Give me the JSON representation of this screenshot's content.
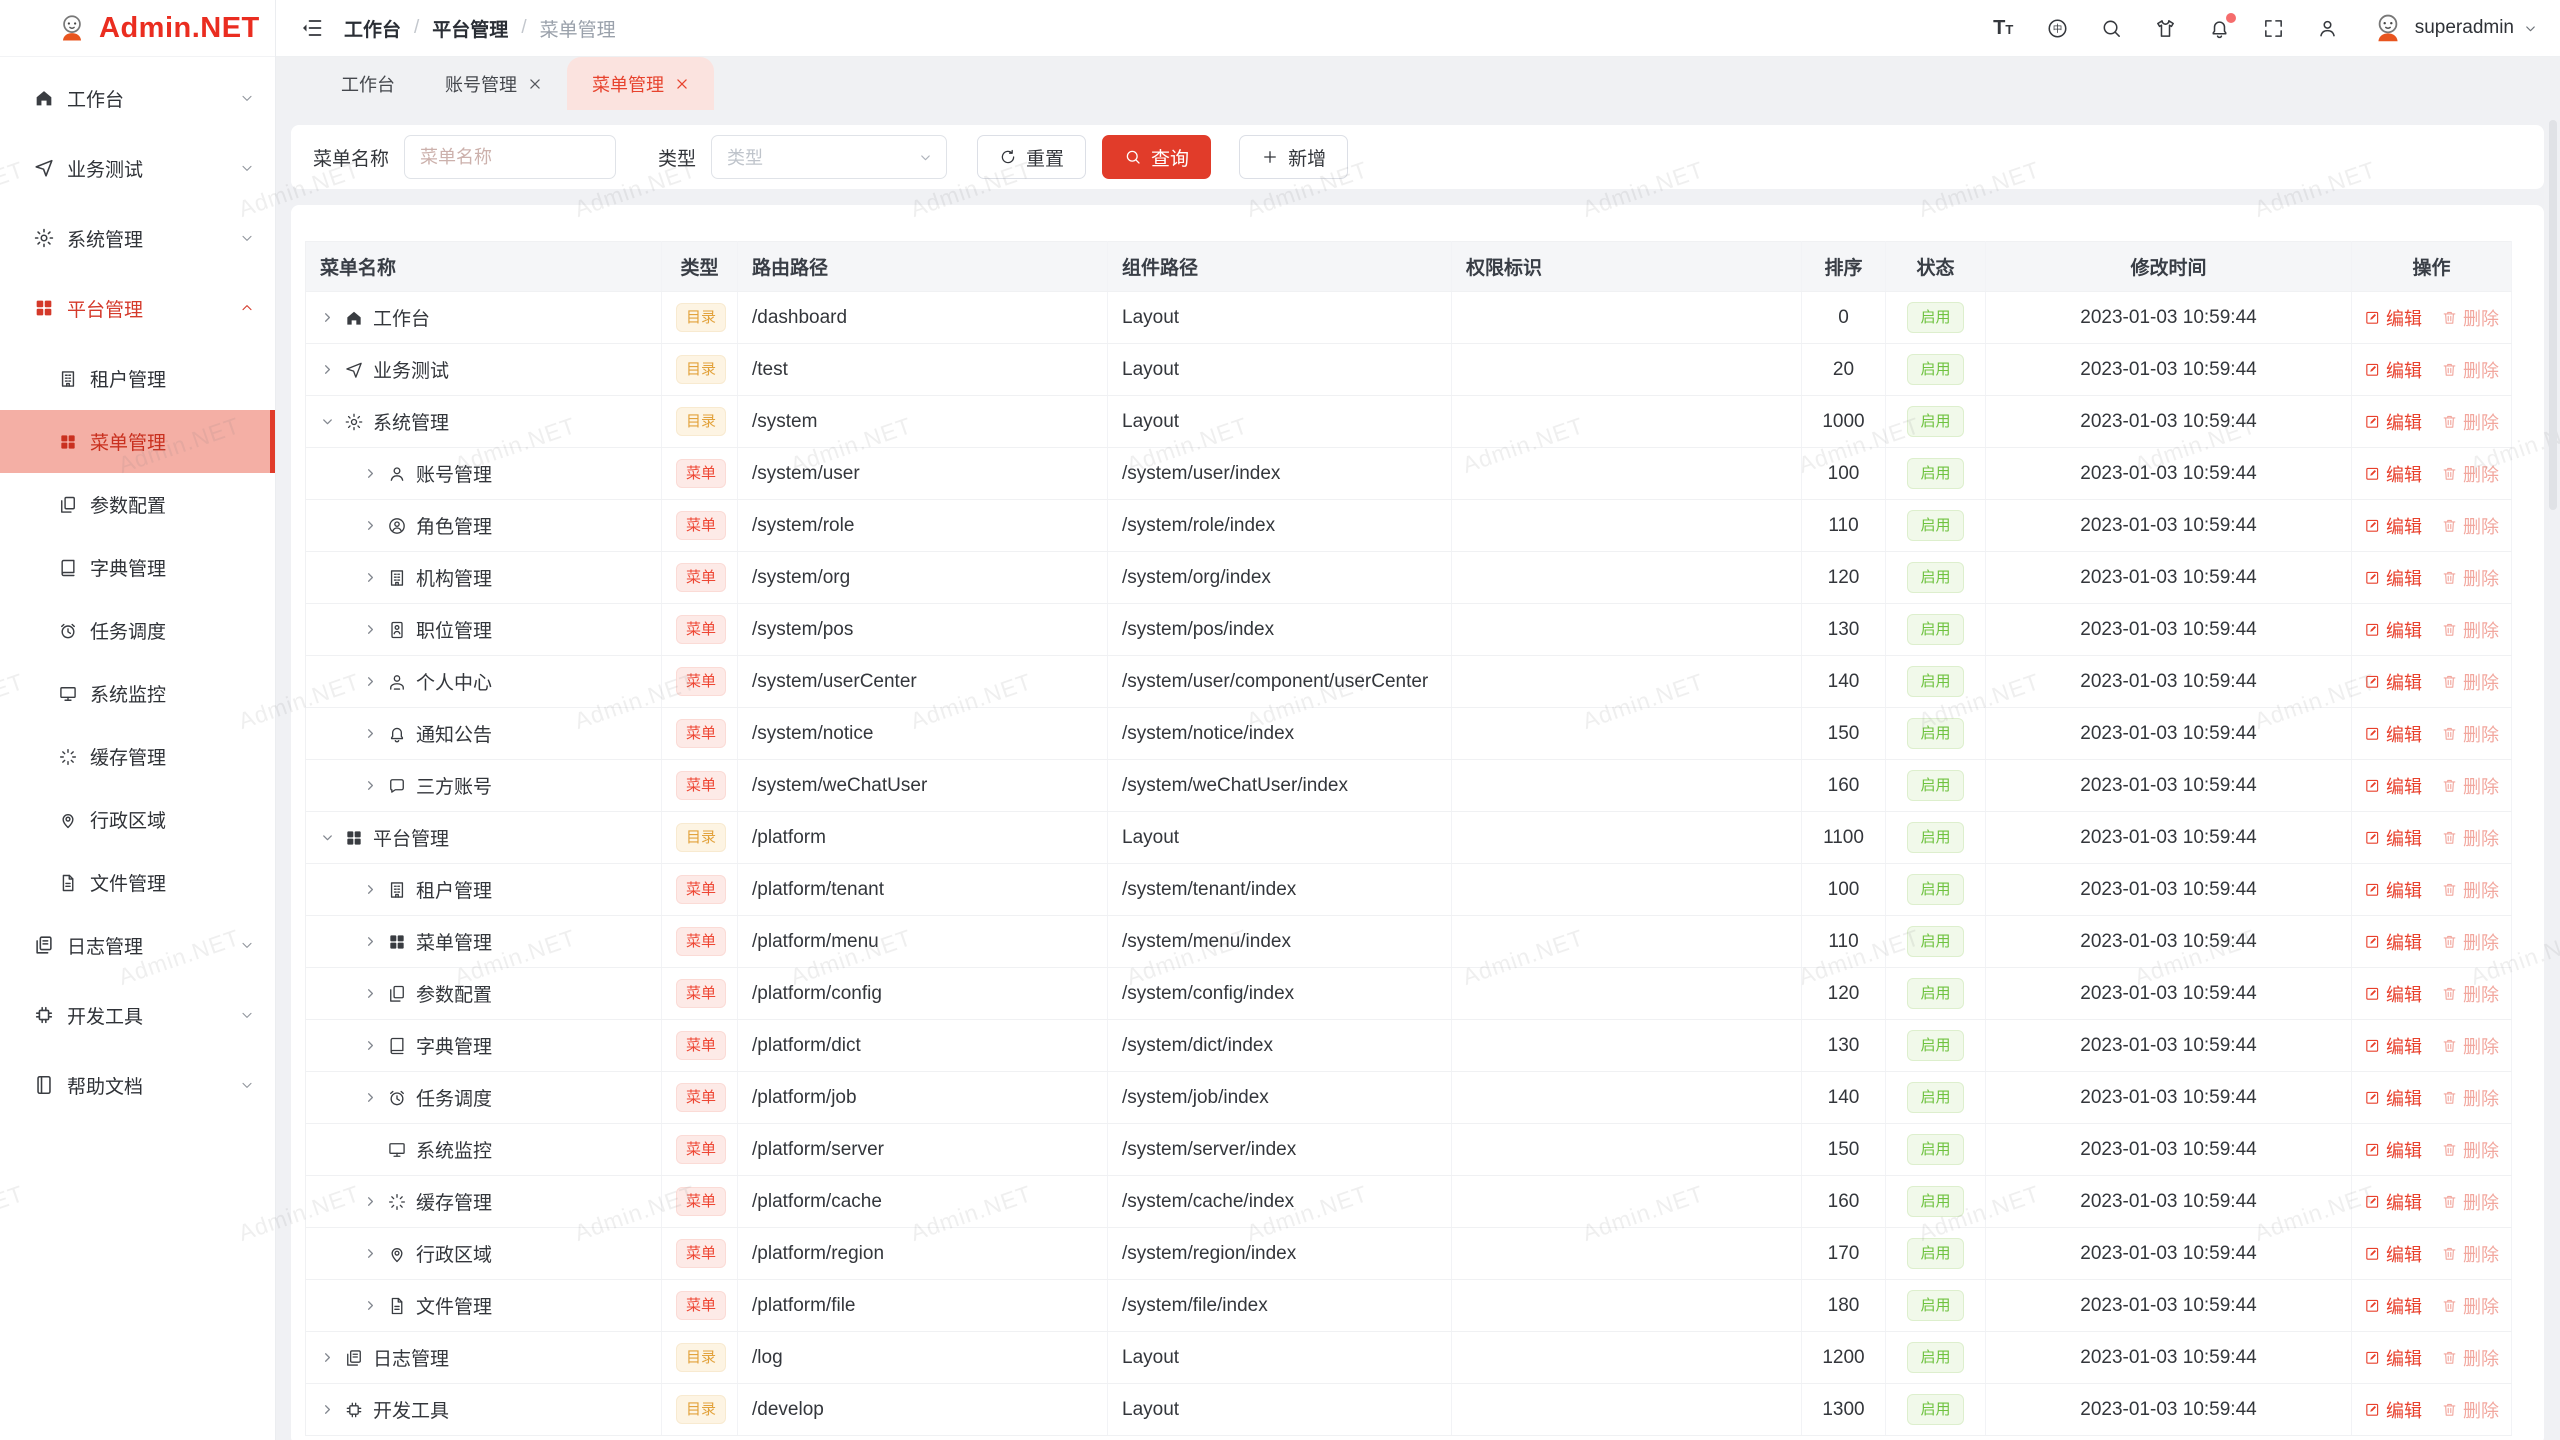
{
  "app": {
    "logo": "Admin.NET",
    "watermark": "Admin.NET"
  },
  "topbar": {
    "breadcrumb": [
      "工作台",
      "平台管理",
      "菜单管理"
    ],
    "separator": "/",
    "tools": [
      {
        "name": "font-size-icon",
        "label": "TT"
      },
      {
        "name": "locale-icon",
        "char": "中"
      },
      {
        "name": "search-icon"
      },
      {
        "name": "theme-icon"
      },
      {
        "name": "notification-bell-icon",
        "has_badge": true
      },
      {
        "name": "fullscreen-icon"
      },
      {
        "name": "profile-icon"
      }
    ],
    "username": "superadmin"
  },
  "tabbar": {
    "tabs": [
      {
        "label": "工作台",
        "closable": false,
        "active": false
      },
      {
        "label": "账号管理",
        "closable": true,
        "active": false
      },
      {
        "label": "菜单管理",
        "closable": true,
        "active": true
      }
    ]
  },
  "sidebar": {
    "items": [
      {
        "label": "工作台",
        "icon": "home-icon",
        "expandable": true,
        "expanded": false
      },
      {
        "label": "业务测试",
        "icon": "plane-icon",
        "expandable": true,
        "expanded": false
      },
      {
        "label": "系统管理",
        "icon": "gear-icon",
        "expandable": true,
        "expanded": false
      },
      {
        "label": "平台管理",
        "icon": "grid-icon",
        "expandable": true,
        "expanded": true,
        "active": true,
        "children": [
          {
            "label": "租户管理",
            "icon": "tenant-icon",
            "active": false
          },
          {
            "label": "菜单管理",
            "icon": "grid-icon",
            "active": true
          },
          {
            "label": "参数配置",
            "icon": "config-icon",
            "active": false
          },
          {
            "label": "字典管理",
            "icon": "book-icon",
            "active": false
          },
          {
            "label": "任务调度",
            "icon": "alarm-icon",
            "active": false
          },
          {
            "label": "系统监控",
            "icon": "monitor-icon",
            "active": false
          },
          {
            "label": "缓存管理",
            "icon": "spinner-icon",
            "active": false
          },
          {
            "label": "行政区域",
            "icon": "pin-icon",
            "active": false
          },
          {
            "label": "文件管理",
            "icon": "file-icon",
            "active": false
          }
        ]
      },
      {
        "label": "日志管理",
        "icon": "log-icon",
        "expandable": true,
        "expanded": false
      },
      {
        "label": "开发工具",
        "icon": "chip-icon",
        "expandable": true,
        "expanded": false
      },
      {
        "label": "帮助文档",
        "icon": "help-doc-icon",
        "expandable": true,
        "expanded": false
      }
    ]
  },
  "search": {
    "name_label": "菜单名称",
    "name_placeholder": "菜单名称",
    "name_value": "",
    "type_label": "类型",
    "type_placeholder": "类型",
    "reset_label": "重置",
    "query_label": "查询",
    "add_label": "新增"
  },
  "table": {
    "columns": [
      "菜单名称",
      "类型",
      "路由路径",
      "组件路径",
      "权限标识",
      "排序",
      "状态",
      "修改时间",
      "操作"
    ],
    "type_labels": {
      "dir": "目录",
      "menu": "菜单"
    },
    "status_label": "启用",
    "edit_label": "编辑",
    "delete_label": "删除",
    "rows": [
      {
        "name": "工作台",
        "icon": "home-icon",
        "level": 0,
        "expand": "closed",
        "type": "dir",
        "route": "/dashboard",
        "component": "Layout",
        "perm": "",
        "sort": "0",
        "time": "2023-01-03 10:59:44"
      },
      {
        "name": "业务测试",
        "icon": "plane-icon",
        "level": 0,
        "expand": "closed",
        "type": "dir",
        "route": "/test",
        "component": "Layout",
        "perm": "",
        "sort": "20",
        "time": "2023-01-03 10:59:44"
      },
      {
        "name": "系统管理",
        "icon": "gear-icon",
        "level": 0,
        "expand": "open",
        "type": "dir",
        "route": "/system",
        "component": "Layout",
        "perm": "",
        "sort": "1000",
        "time": "2023-01-03 10:59:44"
      },
      {
        "name": "账号管理",
        "icon": "user-icon",
        "level": 1,
        "expand": "closed",
        "type": "menu",
        "route": "/system/user",
        "component": "/system/user/index",
        "perm": "",
        "sort": "100",
        "time": "2023-01-03 10:59:44"
      },
      {
        "name": "角色管理",
        "icon": "role-icon",
        "level": 1,
        "expand": "closed",
        "type": "menu",
        "route": "/system/role",
        "component": "/system/role/index",
        "perm": "",
        "sort": "110",
        "time": "2023-01-03 10:59:44"
      },
      {
        "name": "机构管理",
        "icon": "org-icon",
        "level": 1,
        "expand": "closed",
        "type": "menu",
        "route": "/system/org",
        "component": "/system/org/index",
        "perm": "",
        "sort": "120",
        "time": "2023-01-03 10:59:44"
      },
      {
        "name": "职位管理",
        "icon": "badge-icon",
        "level": 1,
        "expand": "closed",
        "type": "menu",
        "route": "/system/pos",
        "component": "/system/pos/index",
        "perm": "",
        "sort": "130",
        "time": "2023-01-03 10:59:44"
      },
      {
        "name": "个人中心",
        "icon": "user-center-icon",
        "level": 1,
        "expand": "closed",
        "type": "menu",
        "route": "/system/userCenter",
        "component": "/system/user/component/userCenter",
        "perm": "",
        "sort": "140",
        "time": "2023-01-03 10:59:44"
      },
      {
        "name": "通知公告",
        "icon": "bell-icon",
        "level": 1,
        "expand": "closed",
        "type": "menu",
        "route": "/system/notice",
        "component": "/system/notice/index",
        "perm": "",
        "sort": "150",
        "time": "2023-01-03 10:59:44"
      },
      {
        "name": "三方账号",
        "icon": "chat-icon",
        "level": 1,
        "expand": "closed",
        "type": "menu",
        "route": "/system/weChatUser",
        "component": "/system/weChatUser/index",
        "perm": "",
        "sort": "160",
        "time": "2023-01-03 10:59:44"
      },
      {
        "name": "平台管理",
        "icon": "grid-icon",
        "level": 0,
        "expand": "open",
        "type": "dir",
        "route": "/platform",
        "component": "Layout",
        "perm": "",
        "sort": "1100",
        "time": "2023-01-03 10:59:44"
      },
      {
        "name": "租户管理",
        "icon": "tenant-icon",
        "level": 1,
        "expand": "closed",
        "type": "menu",
        "route": "/platform/tenant",
        "component": "/system/tenant/index",
        "perm": "",
        "sort": "100",
        "time": "2023-01-03 10:59:44"
      },
      {
        "name": "菜单管理",
        "icon": "grid-icon",
        "level": 1,
        "expand": "closed",
        "type": "menu",
        "route": "/platform/menu",
        "component": "/system/menu/index",
        "perm": "",
        "sort": "110",
        "time": "2023-01-03 10:59:44"
      },
      {
        "name": "参数配置",
        "icon": "config-icon",
        "level": 1,
        "expand": "closed",
        "type": "menu",
        "route": "/platform/config",
        "component": "/system/config/index",
        "perm": "",
        "sort": "120",
        "time": "2023-01-03 10:59:44"
      },
      {
        "name": "字典管理",
        "icon": "book-icon",
        "level": 1,
        "expand": "closed",
        "type": "menu",
        "route": "/platform/dict",
        "component": "/system/dict/index",
        "perm": "",
        "sort": "130",
        "time": "2023-01-03 10:59:44"
      },
      {
        "name": "任务调度",
        "icon": "alarm-icon",
        "level": 1,
        "expand": "closed",
        "type": "menu",
        "route": "/platform/job",
        "component": "/system/job/index",
        "perm": "",
        "sort": "140",
        "time": "2023-01-03 10:59:44"
      },
      {
        "name": "系统监控",
        "icon": "monitor-icon",
        "level": 1,
        "expand": "none",
        "type": "menu",
        "route": "/platform/server",
        "component": "/system/server/index",
        "perm": "",
        "sort": "150",
        "time": "2023-01-03 10:59:44"
      },
      {
        "name": "缓存管理",
        "icon": "spinner-icon",
        "level": 1,
        "expand": "closed",
        "type": "menu",
        "route": "/platform/cache",
        "component": "/system/cache/index",
        "perm": "",
        "sort": "160",
        "time": "2023-01-03 10:59:44"
      },
      {
        "name": "行政区域",
        "icon": "pin-icon",
        "level": 1,
        "expand": "closed",
        "type": "menu",
        "route": "/platform/region",
        "component": "/system/region/index",
        "perm": "",
        "sort": "170",
        "time": "2023-01-03 10:59:44"
      },
      {
        "name": "文件管理",
        "icon": "file-icon",
        "level": 1,
        "expand": "closed",
        "type": "menu",
        "route": "/platform/file",
        "component": "/system/file/index",
        "perm": "",
        "sort": "180",
        "time": "2023-01-03 10:59:44"
      },
      {
        "name": "日志管理",
        "icon": "log-icon",
        "level": 0,
        "expand": "closed",
        "type": "dir",
        "route": "/log",
        "component": "Layout",
        "perm": "",
        "sort": "1200",
        "time": "2023-01-03 10:59:44"
      },
      {
        "name": "开发工具",
        "icon": "chip-icon",
        "level": 0,
        "expand": "closed",
        "type": "dir",
        "route": "/develop",
        "component": "Layout",
        "perm": "",
        "sort": "1300",
        "time": "2023-01-03 10:59:44"
      }
    ]
  },
  "colors": {
    "primary": "#e13c2a",
    "active_menu_bg": "#f4afa5",
    "dir_badge": "#e2a23c",
    "menu_badge": "#ee4734",
    "status_green": "#6ec23f",
    "tab_active_bg": "#fbe3df",
    "notification_dot": "#f56c6c"
  }
}
